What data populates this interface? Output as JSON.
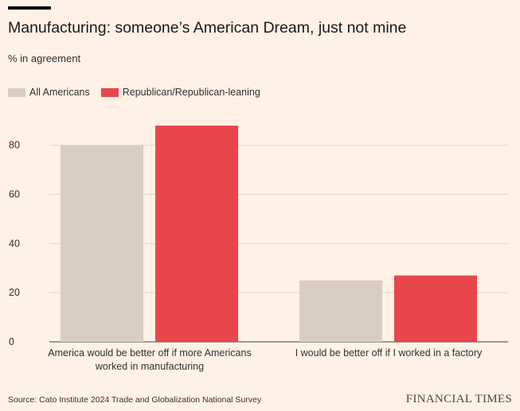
{
  "chart_data": {
    "type": "bar",
    "title": "Manufacturing: someone’s American Dream, just not mine",
    "subtitle": "% in agreement",
    "categories": [
      [
        "America would be better off if more Americans",
        "worked in manufacturing"
      ],
      [
        "I would be better off if I worked in a factory"
      ]
    ],
    "series": [
      {
        "name": "All Americans",
        "color": "#d9ccc1",
        "values": [
          80,
          25
        ]
      },
      {
        "name": "Republican/Republican-leaning",
        "color": "#e8474a",
        "values": [
          88,
          27
        ]
      }
    ],
    "ylim": [
      0,
      88
    ],
    "yticks": [
      0,
      20,
      40,
      60,
      80
    ],
    "xlabel": "",
    "ylabel": "",
    "grid": true,
    "legend_position": "top-left"
  },
  "source": "Source: Cato Institute 2024 Trade and Globalization National Survey",
  "brand": "FINANCIAL TIMES"
}
